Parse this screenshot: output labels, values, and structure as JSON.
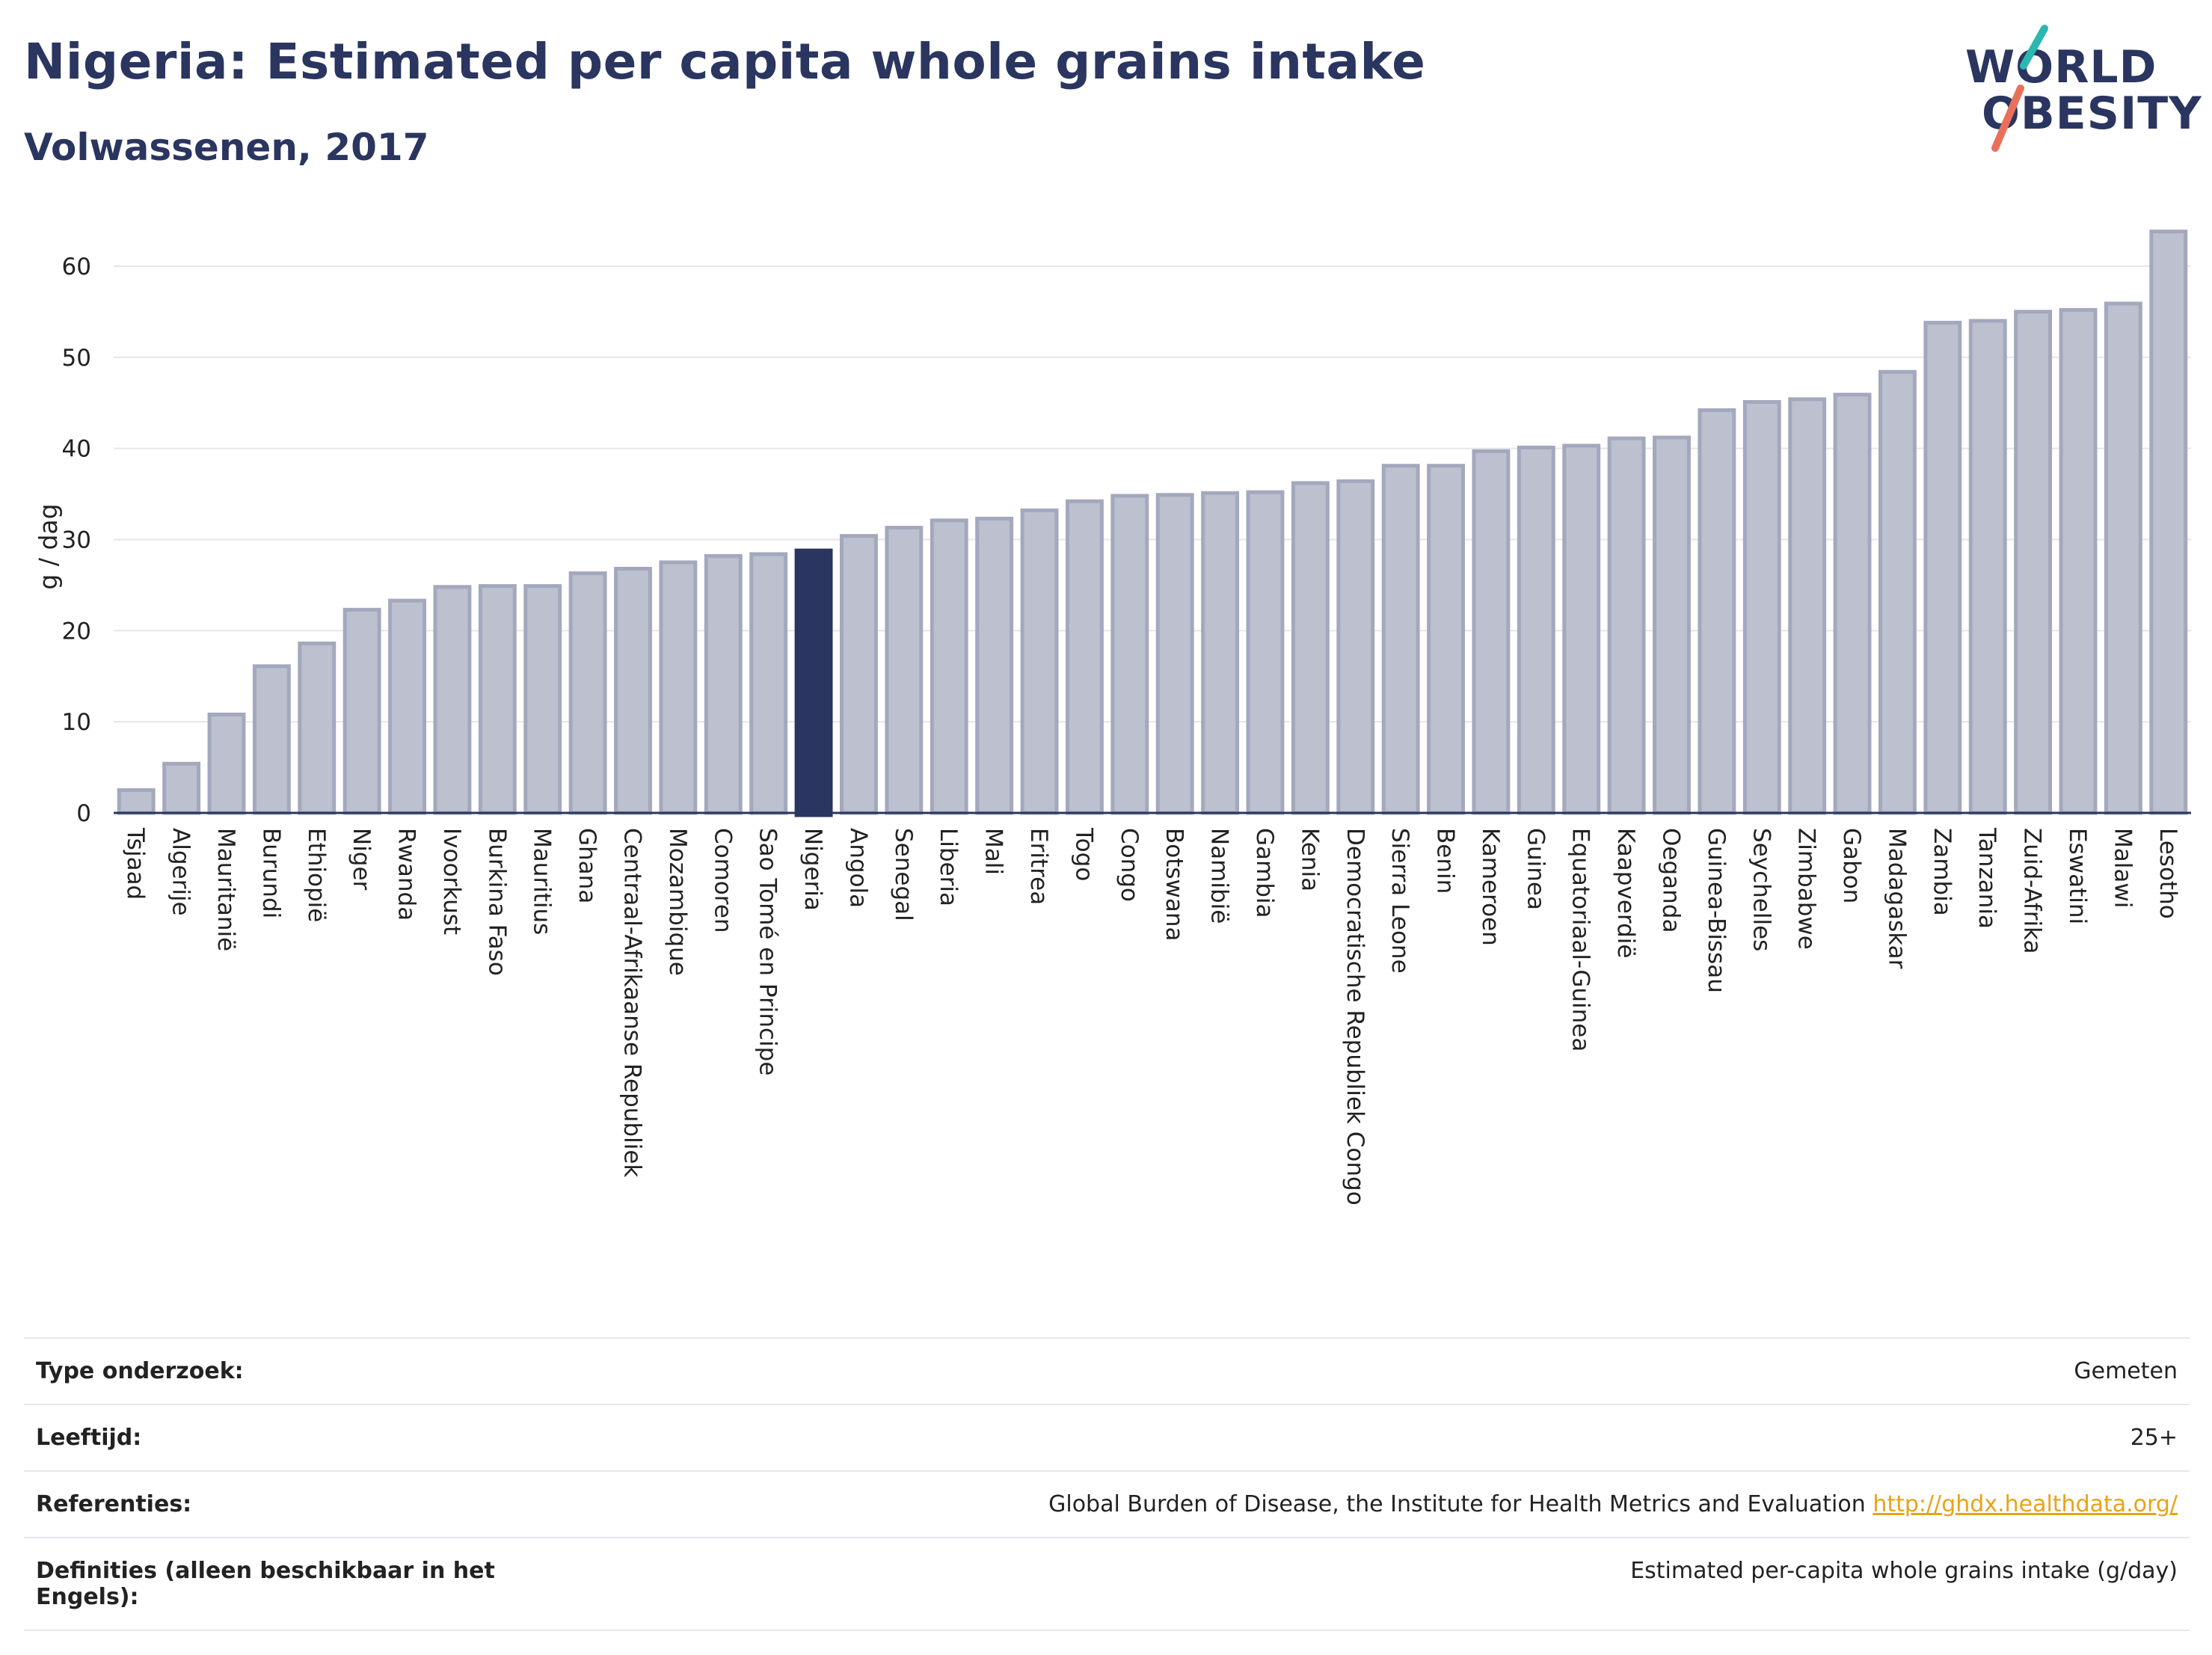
{
  "header": {
    "title": "Nigeria: Estimated per capita whole grains intake",
    "subtitle": "Volwassenen, 2017"
  },
  "logo": {
    "line1": "WORLD",
    "line2": "OBESITY",
    "slash_colors": [
      "#2bb8b0",
      "#e8705a"
    ]
  },
  "colors": {
    "bar_fill": "#bcc0cf",
    "bar_stroke": "#a3a8bd",
    "highlight": "#2a3560",
    "axis": "#2a3560",
    "grid": "#e6e6ea"
  },
  "chart_data": {
    "type": "bar",
    "title": "Nigeria: Estimated per capita whole grains intake",
    "ylabel": "g / dag",
    "ylim": [
      0,
      65
    ],
    "yticks": [
      0,
      10,
      20,
      30,
      40,
      50,
      60
    ],
    "grid": true,
    "highlight": "Nigeria",
    "categories": [
      "Tsjaad",
      "Algerije",
      "Mauritanië",
      "Burundi",
      "Ethiopië",
      "Niger",
      "Rwanda",
      "Ivoorkust",
      "Burkina Faso",
      "Mauritius",
      "Ghana",
      "Centraal-Afrikaanse Republiek",
      "Mozambique",
      "Comoren",
      "Sao Tomé en Principe",
      "Nigeria",
      "Angola",
      "Senegal",
      "Liberia",
      "Mali",
      "Eritrea",
      "Togo",
      "Congo",
      "Botswana",
      "Namibië",
      "Gambia",
      "Kenia",
      "Democratische Republiek Congo",
      "Sierra Leone",
      "Benin",
      "Kameroen",
      "Guinea",
      "Equatoriaal-Guinea",
      "Kaapverdië",
      "Oeganda",
      "Guinea-Bissau",
      "Seychelles",
      "Zimbabwe",
      "Gabon",
      "Madagaskar",
      "Zambia",
      "Tanzania",
      "Zuid-Afrika",
      "Eswatini",
      "Malawi",
      "Lesotho"
    ],
    "values": [
      2.5,
      5.4,
      10.8,
      16.1,
      18.6,
      22.3,
      23.3,
      24.8,
      24.9,
      24.9,
      26.3,
      26.8,
      27.5,
      28.2,
      28.4,
      28.8,
      30.4,
      31.3,
      32.1,
      32.3,
      33.2,
      34.2,
      34.8,
      34.9,
      35.1,
      35.2,
      36.2,
      36.4,
      38.1,
      38.1,
      39.7,
      40.1,
      40.3,
      41.1,
      41.2,
      44.2,
      45.1,
      45.4,
      45.9,
      48.4,
      53.8,
      54.0,
      55.0,
      55.2,
      55.9,
      63.8
    ]
  },
  "info": {
    "rows": [
      {
        "key": "Type onderzoek:",
        "value": "Gemeten"
      },
      {
        "key": "Leeftijd:",
        "value": "25+"
      },
      {
        "key": "Referenties:",
        "value": "Global Burden of Disease, the Institute for Health Metrics and Evaluation",
        "link": "http://ghdx.healthdata.org/"
      },
      {
        "key": "Definities (alleen beschikbaar in het Engels):",
        "value": "Estimated per-capita whole grains intake (g/day)"
      }
    ]
  }
}
